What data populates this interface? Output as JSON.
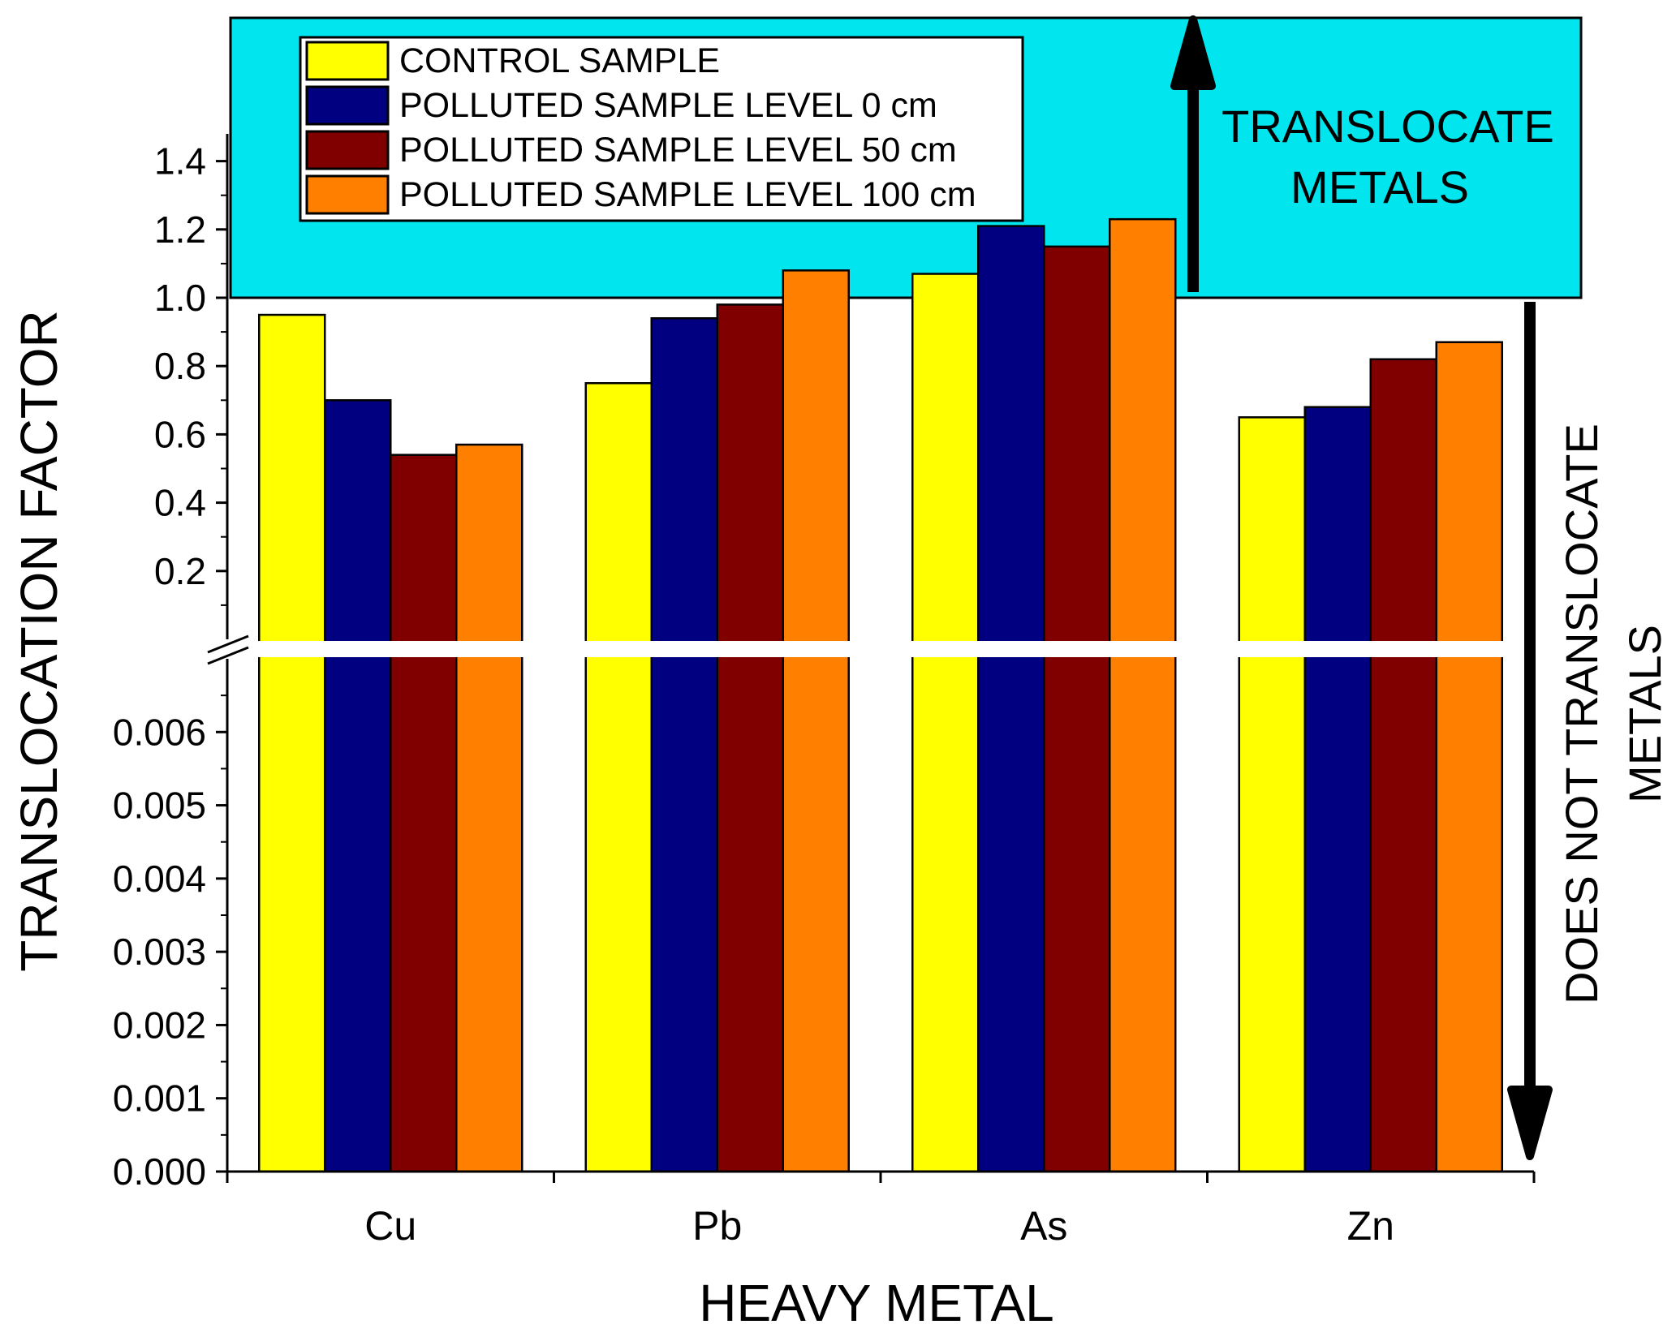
{
  "chart_data": {
    "type": "bar",
    "title": "",
    "xlabel": "HEAVY METAL",
    "ylabel": "TRANSLOCATION FACTOR",
    "categories": [
      "Cu",
      "Pb",
      "As",
      "Zn"
    ],
    "series": [
      {
        "name": "CONTROL SAMPLE",
        "color": "#ffff00",
        "values": [
          0.95,
          0.75,
          1.07,
          0.65
        ]
      },
      {
        "name": "POLLUTED SAMPLE LEVEL 0 cm",
        "color": "#000080",
        "values": [
          0.7,
          0.94,
          1.21,
          0.68
        ]
      },
      {
        "name": "POLLUTED SAMPLE LEVEL 50 cm",
        "color": "#800000",
        "values": [
          0.54,
          0.98,
          1.15,
          0.82
        ]
      },
      {
        "name": "POLLUTED SAMPLE LEVEL 100 cm",
        "color": "#ff8000",
        "values": [
          0.57,
          1.08,
          1.23,
          0.87
        ]
      }
    ],
    "axis_break": {
      "lower_ylim": [
        0.0,
        0.007
      ],
      "upper_ylim": [
        0.0,
        1.5
      ]
    },
    "lower_ticks": [
      "0.000",
      "0.001",
      "0.002",
      "0.003",
      "0.004",
      "0.005",
      "0.006"
    ],
    "upper_ticks": [
      "0.2",
      "0.4",
      "0.6",
      "0.8",
      "1.0",
      "1.2",
      "1.4"
    ],
    "threshold": 1.0,
    "region_color": "#00e5ee",
    "annotations": {
      "upper": [
        "TRANSLOCATE",
        "METALS"
      ],
      "lower": [
        "DOES NOT TRANSLOCATE",
        "METALS"
      ]
    },
    "legend": "top-left"
  }
}
